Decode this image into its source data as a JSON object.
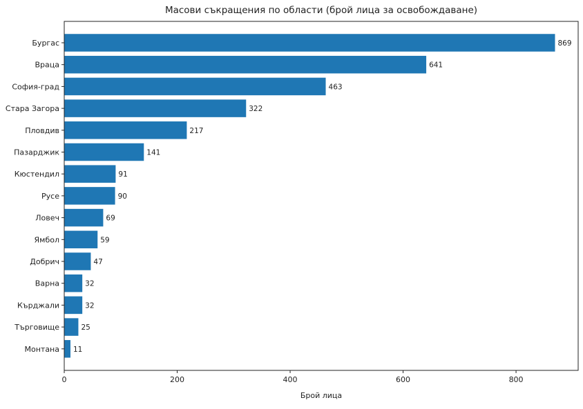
{
  "chart_data": {
    "type": "bar",
    "orientation": "horizontal",
    "title": "Масови съкращения по области (брой лица за освобождаване)",
    "xlabel": "Брой лица",
    "ylabel": "",
    "xlim": [
      0,
      910
    ],
    "xticks": [
      0,
      200,
      400,
      600,
      800
    ],
    "grid": false,
    "legend": "none",
    "bar_color": "#1f77b4",
    "categories": [
      "Бургас",
      "Враца",
      "София-град",
      "Стара Загора",
      "Пловдив",
      "Пазарджик",
      "Кюстендил",
      "Русе",
      "Ловеч",
      "Ямбол",
      "Добрич",
      "Варна",
      "Кърджали",
      "Търговище",
      "Монтана"
    ],
    "values": [
      869,
      641,
      463,
      322,
      217,
      141,
      91,
      90,
      69,
      59,
      47,
      32,
      32,
      25,
      11
    ]
  }
}
